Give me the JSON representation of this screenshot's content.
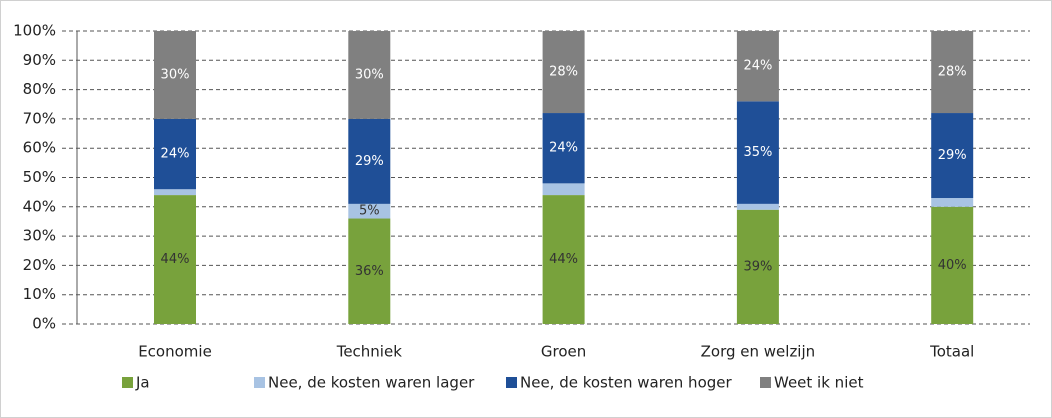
{
  "chart_data": {
    "type": "stacked_bar",
    "categories": [
      "Economie",
      "Techniek",
      "Groen",
      "Zorg en welzijn",
      "Totaal"
    ],
    "series": [
      {
        "name": "Ja",
        "color": "#78a23c",
        "values": [
          44,
          36,
          44,
          39,
          40
        ],
        "value_labels": [
          "44%",
          "36%",
          "44%",
          "39%",
          "40%"
        ]
      },
      {
        "name": "Nee, de kosten waren lager",
        "color": "#a8c3e3",
        "values": [
          2,
          5,
          4,
          2,
          3
        ],
        "value_labels": [
          null,
          "5%",
          null,
          null,
          null
        ]
      },
      {
        "name": "Nee, de kosten waren hoger",
        "color": "#1f4f97",
        "values": [
          24,
          29,
          24,
          35,
          29
        ],
        "value_labels": [
          "24%",
          "29%",
          "24%",
          "35%",
          "29%"
        ]
      },
      {
        "name": "Weet ik niet",
        "color": "#808080",
        "values": [
          30,
          30,
          28,
          24,
          28
        ],
        "value_labels": [
          "30%",
          "30%",
          "28%",
          "24%",
          "28%"
        ]
      }
    ],
    "ylim": [
      0,
      100
    ],
    "yticks": [
      {
        "value": 0,
        "label": "0%"
      },
      {
        "value": 10,
        "label": "10%"
      },
      {
        "value": 20,
        "label": "20%"
      },
      {
        "value": 30,
        "label": "30%"
      },
      {
        "value": 40,
        "label": "40%"
      },
      {
        "value": 50,
        "label": "50%"
      },
      {
        "value": 60,
        "label": "60%"
      },
      {
        "value": 70,
        "label": "70%"
      },
      {
        "value": 80,
        "label": "80%"
      },
      {
        "value": 90,
        "label": "90%"
      },
      {
        "value": 100,
        "label": "100%"
      }
    ],
    "grid": true,
    "legend": "bottom"
  }
}
